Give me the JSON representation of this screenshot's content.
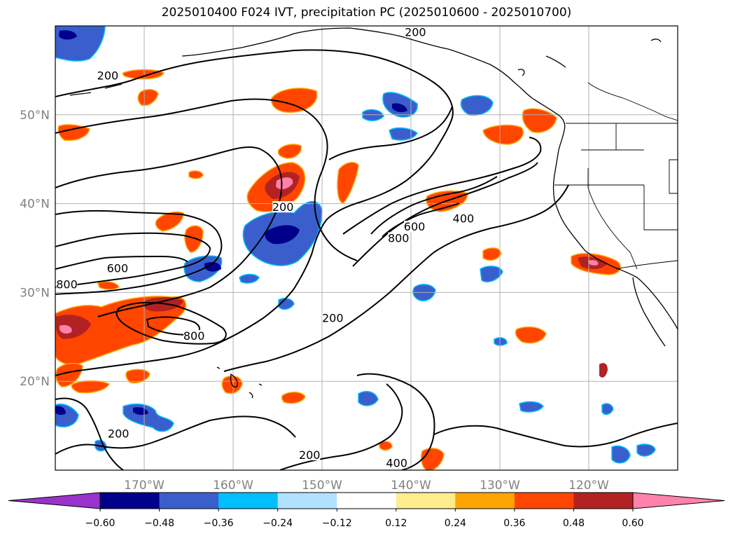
{
  "title": "2025010400 F024 IVT, precipitation PC (2025010600 - 2025010700)",
  "extent": {
    "lon_min": -180,
    "lon_max": -110,
    "lat_min": 10,
    "lat_max": 60
  },
  "lat_ticks": [
    {
      "value": 20,
      "label": "20°N"
    },
    {
      "value": 30,
      "label": "30°N"
    },
    {
      "value": 40,
      "label": "40°N"
    },
    {
      "value": 50,
      "label": "50°N"
    }
  ],
  "lon_ticks": [
    {
      "value": -170,
      "label": "170°W"
    },
    {
      "value": -160,
      "label": "160°W"
    },
    {
      "value": -150,
      "label": "150°W"
    },
    {
      "value": -140,
      "label": "140°W"
    },
    {
      "value": -130,
      "label": "130°W"
    },
    {
      "value": -120,
      "label": "120°W"
    }
  ],
  "contour_labels": [
    {
      "text": "200",
      "lon": -139.5,
      "lat": 59.1
    },
    {
      "text": "200",
      "lon": -174.1,
      "lat": 54.2
    },
    {
      "text": "200",
      "lon": -154.4,
      "lat": 39.4
    },
    {
      "text": "800",
      "lon": -141.4,
      "lat": 35.9
    },
    {
      "text": "600",
      "lon": -139.6,
      "lat": 37.2
    },
    {
      "text": "400",
      "lon": -134.1,
      "lat": 38.1
    },
    {
      "text": "600",
      "lon": -173.0,
      "lat": 32.5
    },
    {
      "text": "800",
      "lon": -178.7,
      "lat": 30.7
    },
    {
      "text": "200",
      "lon": -148.8,
      "lat": 26.9
    },
    {
      "text": "800",
      "lon": -164.4,
      "lat": 24.9
    },
    {
      "text": "200",
      "lon": -172.9,
      "lat": 13.9
    },
    {
      "text": "200",
      "lon": -151.4,
      "lat": 11.5
    },
    {
      "text": "400",
      "lon": -141.6,
      "lat": 10.6
    }
  ],
  "colorbar": {
    "colors": [
      "#9933cc",
      "#00008b",
      "#3a5fcd",
      "#00bfff",
      "#b0e2ff",
      "#ffffff",
      "#ffec8b",
      "#ffa500",
      "#ff4500",
      "#b22222",
      "#ff82ab"
    ],
    "tick_labels": [
      "−0.60",
      "−0.48",
      "−0.36",
      "−0.24",
      "−0.12",
      "0.12",
      "0.24",
      "0.36",
      "0.48",
      "0.60"
    ]
  },
  "palette": {
    "land_line": "#000000",
    "grid": "#b0b0b0",
    "contour": "#000000"
  }
}
